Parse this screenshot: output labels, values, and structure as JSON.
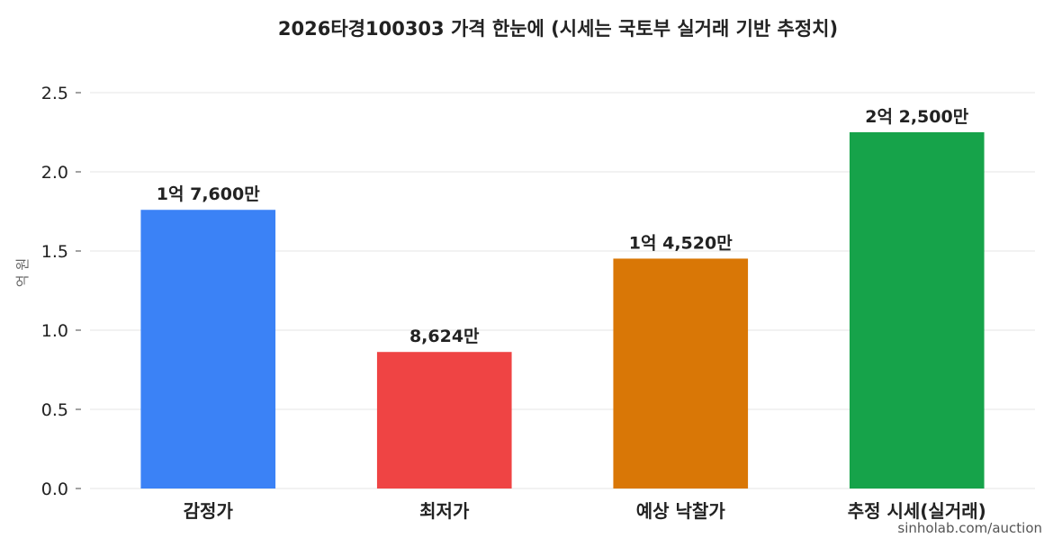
{
  "chart_data": {
    "type": "bar",
    "title": "2026타경100303 가격 한눈에 (시세는 국토부 실거래 기반 추정치)",
    "ylabel": "억 원",
    "xlabel": "",
    "ylim": [
      0,
      2.5
    ],
    "yticks": [
      "0.0",
      "0.5",
      "1.0",
      "1.5",
      "2.0",
      "2.5"
    ],
    "grid": true,
    "categories": [
      "감정가",
      "최저가",
      "예상 낙찰가",
      "추정 시세(실거래)"
    ],
    "values": [
      1.76,
      0.8624,
      1.452,
      2.25
    ],
    "data_labels": [
      "1억 7,600만",
      "8,624만",
      "1억 4,520만",
      "2억 2,500만"
    ],
    "colors": [
      "#3b82f6",
      "#ef4444",
      "#d97706",
      "#16a34a"
    ]
  },
  "watermark": "sinholab.com/auction"
}
